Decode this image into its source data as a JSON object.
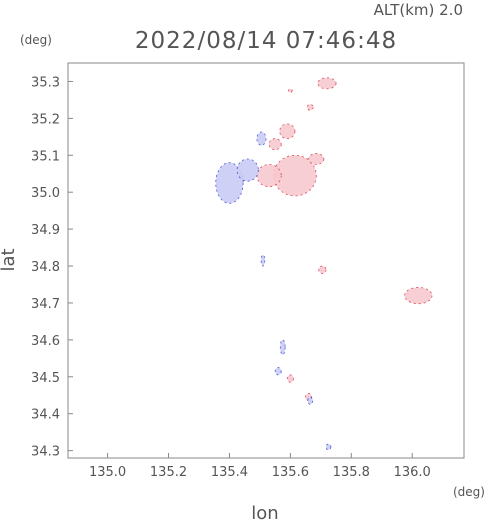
{
  "header": {
    "altitude": "ALT(km) 2.0",
    "timestamp": "2022/08/14 07:46:48",
    "y_unit": "(deg)",
    "x_unit": "(deg)"
  },
  "chart_data": {
    "type": "scatter",
    "title": "2022/08/14 07:46:48",
    "xlabel": "lon",
    "ylabel": "lat",
    "xlim": [
      134.87,
      136.17
    ],
    "ylim": [
      34.28,
      35.35
    ],
    "x_ticks": [
      135.0,
      135.2,
      135.4,
      135.6,
      135.8,
      136.0
    ],
    "x_tick_labels": [
      "135.0",
      "135.2",
      "135.4",
      "135.6",
      "135.8",
      "136.0"
    ],
    "y_ticks": [
      34.3,
      34.4,
      34.5,
      34.6,
      34.7,
      34.8,
      34.9,
      35.0,
      35.1,
      35.2,
      35.3
    ],
    "y_tick_labels": [
      "34.3",
      "34.4",
      "34.5",
      "34.6",
      "34.7",
      "34.8",
      "34.9",
      "35.0",
      "35.1",
      "35.2",
      "35.3"
    ],
    "colors": {
      "positive": "#f7c9cf",
      "positive_edge": "#d9374a",
      "negative": "#c9cdf4",
      "negative_edge": "#3a44d8",
      "frame": "#888888"
    },
    "series": [
      {
        "sign": "positive",
        "cells": [
          {
            "lon": 135.72,
            "lat": 35.295,
            "rx": 0.03,
            "ry": 0.015
          },
          {
            "lon": 135.665,
            "lat": 35.23,
            "rx": 0.01,
            "ry": 0.008
          },
          {
            "lon": 135.6,
            "lat": 35.275,
            "rx": 0.006,
            "ry": 0.005
          },
          {
            "lon": 135.59,
            "lat": 35.165,
            "rx": 0.025,
            "ry": 0.02
          },
          {
            "lon": 135.55,
            "lat": 35.13,
            "rx": 0.02,
            "ry": 0.015
          },
          {
            "lon": 135.615,
            "lat": 35.045,
            "rx": 0.07,
            "ry": 0.055
          },
          {
            "lon": 135.53,
            "lat": 35.045,
            "rx": 0.04,
            "ry": 0.03
          },
          {
            "lon": 135.685,
            "lat": 35.09,
            "rx": 0.025,
            "ry": 0.015
          },
          {
            "lon": 135.705,
            "lat": 34.79,
            "rx": 0.012,
            "ry": 0.01
          },
          {
            "lon": 136.02,
            "lat": 34.72,
            "rx": 0.045,
            "ry": 0.022
          },
          {
            "lon": 135.6,
            "lat": 34.495,
            "rx": 0.01,
            "ry": 0.01
          },
          {
            "lon": 135.66,
            "lat": 34.445,
            "rx": 0.01,
            "ry": 0.01
          }
        ]
      },
      {
        "sign": "negative",
        "cells": [
          {
            "lon": 135.4,
            "lat": 35.025,
            "rx": 0.045,
            "ry": 0.055
          },
          {
            "lon": 135.46,
            "lat": 35.06,
            "rx": 0.035,
            "ry": 0.03
          },
          {
            "lon": 135.505,
            "lat": 35.145,
            "rx": 0.015,
            "ry": 0.018
          },
          {
            "lon": 135.51,
            "lat": 34.815,
            "rx": 0.006,
            "ry": 0.015
          },
          {
            "lon": 135.575,
            "lat": 34.58,
            "rx": 0.008,
            "ry": 0.02
          },
          {
            "lon": 135.56,
            "lat": 34.515,
            "rx": 0.01,
            "ry": 0.01
          },
          {
            "lon": 135.665,
            "lat": 34.435,
            "rx": 0.008,
            "ry": 0.01
          },
          {
            "lon": 135.725,
            "lat": 34.31,
            "rx": 0.008,
            "ry": 0.008
          }
        ]
      }
    ]
  }
}
